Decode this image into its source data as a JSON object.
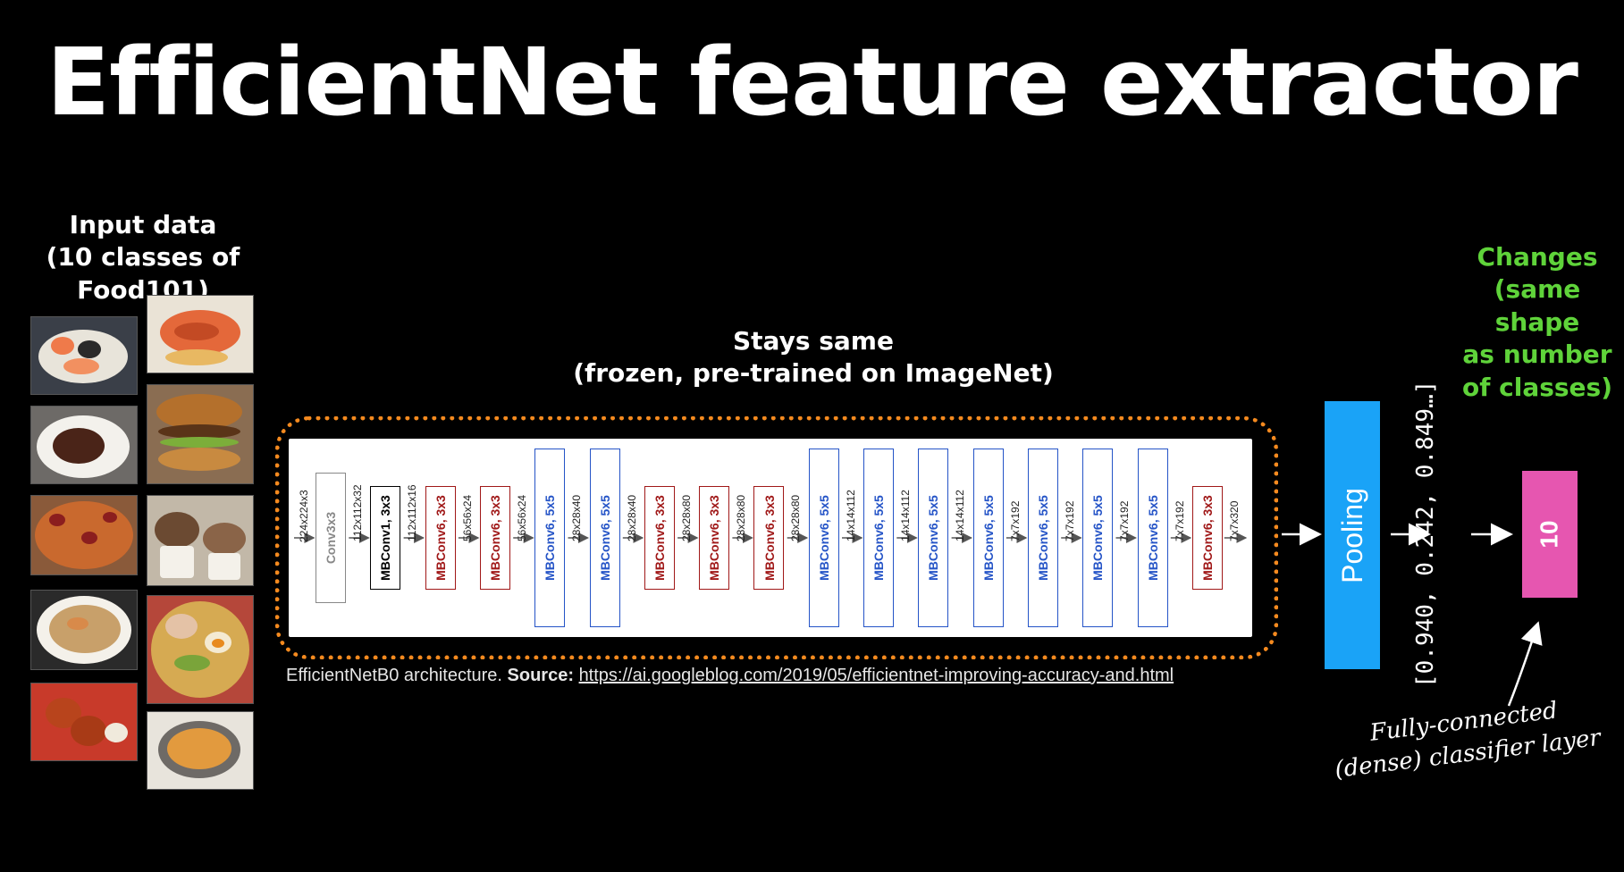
{
  "title": "EfficientNet feature extractor",
  "input": {
    "line1": "Input data",
    "line2": "(10 classes of Food101)"
  },
  "stays": {
    "line1": "Stays same",
    "line2": "(frozen, pre-trained on ImageNet)"
  },
  "changes": {
    "line1": "Changes",
    "line2": "(same shape",
    "line3": "as number",
    "line4": "of classes)"
  },
  "architecture": {
    "input_dim": "224x224x3",
    "blocks": [
      {
        "label": "Conv3x3",
        "color": "gray",
        "out": "112x112x32"
      },
      {
        "label": "MBConv1, 3x3",
        "color": "black",
        "out": "112x112x16"
      },
      {
        "label": "MBConv6, 3x3",
        "color": "red",
        "out": "56x56x24"
      },
      {
        "label": "MBConv6, 3x3",
        "color": "red",
        "out": "56x56x24"
      },
      {
        "label": "MBConv6, 5x5",
        "color": "blue",
        "out": "28x28x40"
      },
      {
        "label": "MBConv6, 5x5",
        "color": "blue",
        "out": "28x28x40"
      },
      {
        "label": "MBConv6, 3x3",
        "color": "red",
        "out": "28x28x80"
      },
      {
        "label": "MBConv6, 3x3",
        "color": "red",
        "out": "28x28x80"
      },
      {
        "label": "MBConv6, 3x3",
        "color": "red",
        "out": "28x28x80"
      },
      {
        "label": "MBConv6, 5x5",
        "color": "blue",
        "out": "14x14x112"
      },
      {
        "label": "MBConv6, 5x5",
        "color": "blue",
        "out": "14x14x112"
      },
      {
        "label": "MBConv6, 5x5",
        "color": "blue",
        "out": "14x14x112"
      },
      {
        "label": "MBConv6, 5x5",
        "color": "blue",
        "out": "7x7x192"
      },
      {
        "label": "MBConv6, 5x5",
        "color": "blue",
        "out": "7x7x192"
      },
      {
        "label": "MBConv6, 5x5",
        "color": "blue",
        "out": "7x7x192"
      },
      {
        "label": "MBConv6, 5x5",
        "color": "blue",
        "out": "7x7x192"
      },
      {
        "label": "MBConv6, 3x3",
        "color": "red",
        "out": "7x7x320"
      }
    ]
  },
  "caption": {
    "text": "EfficientNetB0 architecture. ",
    "source_label": "Source:",
    "url": "https://ai.googleblog.com/2019/05/efficientnet-improving-accuracy-and.html"
  },
  "pooling_label": "Pooling",
  "vector_text": "[0.940, 0.242, 0.849…]",
  "output_label": "10",
  "classifier_note": {
    "line1": "Fully-connected",
    "line2": "(dense) classifier layer"
  },
  "colors": {
    "border": "#f58a1f",
    "pooling": "#1aa3f7",
    "output": "#e656b0",
    "green": "#5fd33a"
  },
  "food_images": [
    "sushi",
    "grilled salmon",
    "steak",
    "hamburger",
    "pizza",
    "ice cream",
    "fried rice",
    "ramen",
    "chicken wings",
    "curry"
  ]
}
